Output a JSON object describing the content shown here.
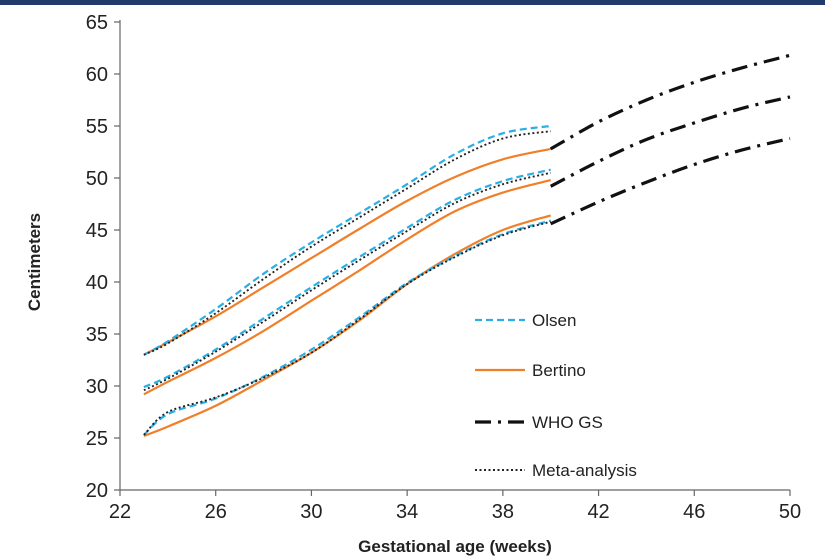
{
  "chart_data": {
    "type": "line",
    "xlabel": "Gestational age (weeks)",
    "ylabel": "Centimeters",
    "xlim": [
      22,
      50
    ],
    "ylim": [
      20,
      65
    ],
    "xticks": [
      22,
      26,
      30,
      34,
      38,
      42,
      46,
      50
    ],
    "yticks": [
      20,
      25,
      30,
      35,
      40,
      45,
      50,
      55,
      60,
      65
    ],
    "legend_position": "center-right",
    "series": [
      {
        "name": "Olsen",
        "color": "#29aee6",
        "dash": "dashed",
        "curves": [
          {
            "x": [
              23,
              24,
              26,
              28,
              30,
              32,
              34,
              36,
              38,
              40
            ],
            "y": [
              33.0,
              34.3,
              37.4,
              40.8,
              43.8,
              46.6,
              49.4,
              52.3,
              54.3,
              55.0
            ]
          },
          {
            "x": [
              23,
              24,
              26,
              28,
              30,
              32,
              34,
              36,
              38,
              40
            ],
            "y": [
              29.9,
              30.9,
              33.5,
              36.5,
              39.5,
              42.4,
              45.2,
              47.9,
              49.7,
              50.8
            ]
          },
          {
            "x": [
              23,
              24,
              26,
              28,
              30,
              32,
              34,
              36,
              38,
              40
            ],
            "y": [
              25.3,
              27.3,
              28.8,
              30.9,
              33.5,
              36.6,
              39.9,
              42.5,
              44.6,
              45.9
            ]
          }
        ]
      },
      {
        "name": "Bertino",
        "color": "#f07f2a",
        "dash": "solid",
        "curves": [
          {
            "x": [
              23,
              24,
              26,
              28,
              30,
              32,
              34,
              36,
              38,
              40
            ],
            "y": [
              33.0,
              34.2,
              36.7,
              39.5,
              42.3,
              45.1,
              47.8,
              50.1,
              51.8,
              52.8
            ]
          },
          {
            "x": [
              23,
              24,
              26,
              28,
              30,
              32,
              34,
              36,
              38,
              40
            ],
            "y": [
              29.2,
              30.4,
              32.7,
              35.3,
              38.2,
              41.1,
              44.1,
              46.8,
              48.6,
              49.8
            ]
          },
          {
            "x": [
              23,
              24,
              26,
              28,
              30,
              32,
              34,
              36,
              38,
              40
            ],
            "y": [
              25.2,
              26.1,
              28.1,
              30.6,
              33.2,
              36.3,
              39.8,
              42.7,
              45.0,
              46.4
            ]
          }
        ]
      },
      {
        "name": "WHO GS",
        "color": "#111111",
        "dash": "dashdot",
        "curves": [
          {
            "x": [
              40,
              42,
              44,
              46,
              48,
              50
            ],
            "y": [
              52.8,
              55.4,
              57.5,
              59.2,
              60.6,
              61.8
            ]
          },
          {
            "x": [
              40,
              42,
              44,
              46,
              48,
              50
            ],
            "y": [
              49.2,
              51.6,
              53.7,
              55.3,
              56.7,
              57.8
            ]
          },
          {
            "x": [
              40,
              42,
              44,
              46,
              48,
              50
            ],
            "y": [
              45.6,
              47.7,
              49.6,
              51.3,
              52.7,
              53.8
            ]
          }
        ]
      },
      {
        "name": "Meta-analysis",
        "color": "#222222",
        "dash": "dotted",
        "curves": [
          {
            "x": [
              23,
              24,
              26,
              28,
              30,
              32,
              34,
              36,
              38,
              40
            ],
            "y": [
              33.0,
              34.1,
              37.0,
              40.3,
              43.4,
              46.2,
              49.0,
              51.8,
              53.8,
              54.5
            ]
          },
          {
            "x": [
              23,
              24,
              26,
              28,
              30,
              32,
              34,
              36,
              38,
              40
            ],
            "y": [
              29.6,
              30.7,
              33.3,
              36.2,
              39.2,
              42.1,
              44.9,
              47.6,
              49.4,
              50.5
            ]
          },
          {
            "x": [
              23,
              24,
              26,
              28,
              30,
              32,
              34,
              36,
              38,
              40
            ],
            "y": [
              25.3,
              27.5,
              28.9,
              30.8,
              33.2,
              36.4,
              39.8,
              42.4,
              44.5,
              45.8
            ]
          }
        ]
      }
    ]
  }
}
